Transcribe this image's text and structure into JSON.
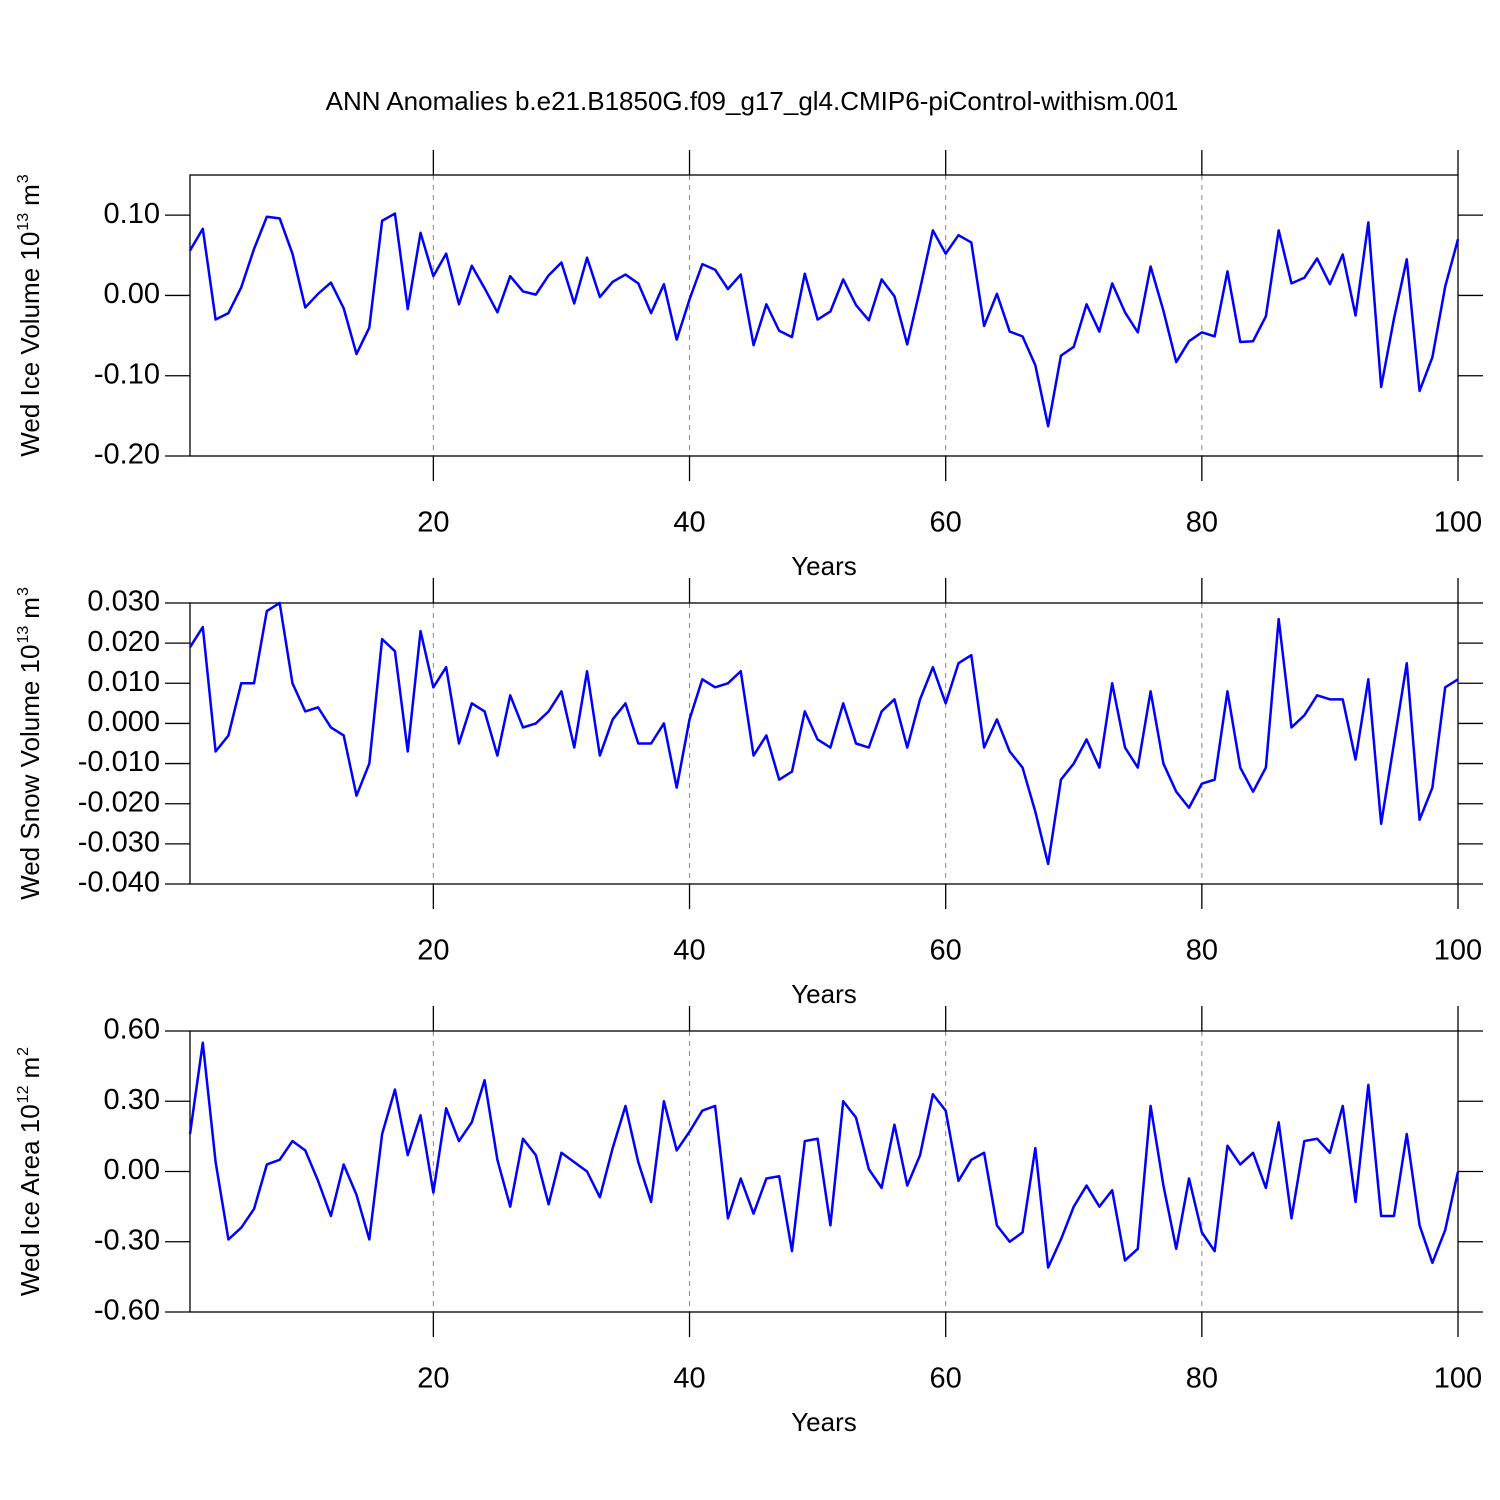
{
  "chart_data": [
    {
      "type": "line",
      "title": "ANN Anomalies b.e21.B1850G.f09_g17_gl4.CMIP6-piControl-withism.001",
      "ylabel": [
        "Wed Ice Volume 10",
        "13",
        "m",
        "3"
      ],
      "xlabel": "Years",
      "color": "#0000ff",
      "xlim": [
        1,
        100
      ],
      "xticks": [
        20,
        40,
        60,
        80,
        100
      ],
      "ylim": [
        -0.2,
        0.15
      ],
      "yticks": [
        {
          "value": 0.1,
          "label": "0.10"
        },
        {
          "value": 0,
          "label": "0.00"
        },
        {
          "value": -0.1,
          "label": "-0.10"
        },
        {
          "value": -0.2,
          "label": "-0.20"
        }
      ],
      "x": [
        1,
        2,
        3,
        4,
        5,
        6,
        7,
        8,
        9,
        10,
        11,
        12,
        13,
        14,
        15,
        16,
        17,
        18,
        19,
        20,
        21,
        22,
        23,
        24,
        25,
        26,
        27,
        28,
        29,
        30,
        31,
        32,
        33,
        34,
        35,
        36,
        37,
        38,
        39,
        40,
        41,
        42,
        43,
        44,
        45,
        46,
        47,
        48,
        49,
        50,
        51,
        52,
        53,
        54,
        55,
        56,
        57,
        58,
        59,
        60,
        61,
        62,
        63,
        64,
        65,
        66,
        67,
        68,
        69,
        70,
        71,
        72,
        73,
        74,
        75,
        76,
        77,
        78,
        79,
        80,
        81,
        82,
        83,
        84,
        85,
        86,
        87,
        88,
        89,
        90,
        91,
        92,
        93,
        94,
        95,
        96,
        97,
        98,
        99,
        100
      ],
      "values": [
        0.056,
        0.083,
        -0.03,
        -0.022,
        0.01,
        0.058,
        0.098,
        0.096,
        0.052,
        -0.015,
        0.002,
        0.016,
        -0.016,
        -0.073,
        -0.04,
        0.093,
        0.102,
        -0.017,
        0.078,
        0.024,
        0.052,
        -0.011,
        0.037,
        0.009,
        -0.021,
        0.024,
        0.005,
        0.001,
        0.025,
        0.041,
        -0.01,
        0.047,
        -0.002,
        0.017,
        0.026,
        0.015,
        -0.022,
        0.014,
        -0.055,
        -0.005,
        0.039,
        0.032,
        0.008,
        0.026,
        -0.062,
        -0.011,
        -0.044,
        -0.052,
        0.027,
        -0.03,
        -0.02,
        0.02,
        -0.012,
        -0.031,
        0.02,
        -0.001,
        -0.061,
        0.008,
        0.081,
        0.052,
        0.075,
        0.066,
        -0.038,
        0.002,
        -0.045,
        -0.051,
        -0.087,
        -0.163,
        -0.075,
        -0.064,
        -0.011,
        -0.045,
        0.015,
        -0.021,
        -0.046,
        0.036,
        -0.019,
        -0.083,
        -0.057,
        -0.046,
        -0.051,
        0.03,
        -0.058,
        -0.057,
        -0.026,
        0.081,
        0.015,
        0.022,
        0.046,
        0.014,
        0.051,
        -0.025,
        0.091,
        -0.114,
        -0.029,
        0.045,
        -0.119,
        -0.077,
        0.011,
        0.07
      ]
    },
    {
      "type": "line",
      "ylabel": [
        "Wed Snow Volume 10",
        "13",
        "m",
        "3"
      ],
      "xlabel": "Years",
      "color": "#0000ff",
      "xlim": [
        1,
        100
      ],
      "xticks": [
        20,
        40,
        60,
        80,
        100
      ],
      "ylim": [
        -0.04,
        0.03
      ],
      "yticks": [
        {
          "value": 0.03,
          "label": "0.030"
        },
        {
          "value": 0.02,
          "label": "0.020"
        },
        {
          "value": 0.01,
          "label": "0.010"
        },
        {
          "value": 0,
          "label": "0.000"
        },
        {
          "value": -0.01,
          "label": "-0.010"
        },
        {
          "value": -0.02,
          "label": "-0.020"
        },
        {
          "value": -0.03,
          "label": "-0.030"
        },
        {
          "value": -0.04,
          "label": "-0.040"
        }
      ],
      "x": [
        1,
        2,
        3,
        4,
        5,
        6,
        7,
        8,
        9,
        10,
        11,
        12,
        13,
        14,
        15,
        16,
        17,
        18,
        19,
        20,
        21,
        22,
        23,
        24,
        25,
        26,
        27,
        28,
        29,
        30,
        31,
        32,
        33,
        34,
        35,
        36,
        37,
        38,
        39,
        40,
        41,
        42,
        43,
        44,
        45,
        46,
        47,
        48,
        49,
        50,
        51,
        52,
        53,
        54,
        55,
        56,
        57,
        58,
        59,
        60,
        61,
        62,
        63,
        64,
        65,
        66,
        67,
        68,
        69,
        70,
        71,
        72,
        73,
        74,
        75,
        76,
        77,
        78,
        79,
        80,
        81,
        82,
        83,
        84,
        85,
        86,
        87,
        88,
        89,
        90,
        91,
        92,
        93,
        94,
        95,
        96,
        97,
        98,
        99,
        100
      ],
      "values": [
        0.019,
        0.024,
        -0.007,
        -0.003,
        0.01,
        0.01,
        0.028,
        0.03,
        0.01,
        0.003,
        0.004,
        -0.001,
        -0.003,
        -0.018,
        -0.01,
        0.021,
        0.018,
        -0.007,
        0.023,
        0.009,
        0.014,
        -0.005,
        0.005,
        0.003,
        -0.008,
        0.007,
        -0.001,
        0.0,
        0.003,
        0.008,
        -0.006,
        0.013,
        -0.008,
        0.001,
        0.005,
        -0.005,
        -0.005,
        0.0,
        -0.016,
        0.001,
        0.011,
        0.009,
        0.01,
        0.013,
        -0.008,
        -0.003,
        -0.014,
        -0.012,
        0.003,
        -0.004,
        -0.006,
        0.005,
        -0.005,
        -0.006,
        0.003,
        0.006,
        -0.006,
        0.006,
        0.014,
        0.005,
        0.015,
        0.017,
        -0.006,
        0.001,
        -0.007,
        -0.011,
        -0.022,
        -0.035,
        -0.014,
        -0.01,
        -0.004,
        -0.011,
        0.01,
        -0.006,
        -0.011,
        0.008,
        -0.01,
        -0.017,
        -0.021,
        -0.015,
        -0.014,
        0.008,
        -0.011,
        -0.017,
        -0.011,
        0.026,
        -0.001,
        0.002,
        0.007,
        0.006,
        0.006,
        -0.009,
        0.011,
        -0.025,
        -0.005,
        0.015,
        -0.024,
        -0.016,
        0.009,
        0.011
      ]
    },
    {
      "type": "line",
      "ylabel": [
        "Wed Ice Area 10",
        "12",
        "m",
        "2"
      ],
      "xlabel": "Years",
      "color": "#0000ff",
      "xlim": [
        1,
        100
      ],
      "xticks": [
        20,
        40,
        60,
        80,
        100
      ],
      "ylim": [
        -0.6,
        0.6
      ],
      "yticks": [
        {
          "value": 0.6,
          "label": "0.60"
        },
        {
          "value": 0.3,
          "label": "0.30"
        },
        {
          "value": 0,
          "label": "0.00"
        },
        {
          "value": -0.3,
          "label": "-0.30"
        },
        {
          "value": -0.6,
          "label": "-0.60"
        }
      ],
      "x": [
        1,
        2,
        3,
        4,
        5,
        6,
        7,
        8,
        9,
        10,
        11,
        12,
        13,
        14,
        15,
        16,
        17,
        18,
        19,
        20,
        21,
        22,
        23,
        24,
        25,
        26,
        27,
        28,
        29,
        30,
        31,
        32,
        33,
        34,
        35,
        36,
        37,
        38,
        39,
        40,
        41,
        42,
        43,
        44,
        45,
        46,
        47,
        48,
        49,
        50,
        51,
        52,
        53,
        54,
        55,
        56,
        57,
        58,
        59,
        60,
        61,
        62,
        63,
        64,
        65,
        66,
        67,
        68,
        69,
        70,
        71,
        72,
        73,
        74,
        75,
        76,
        77,
        78,
        79,
        80,
        81,
        82,
        83,
        84,
        85,
        86,
        87,
        88,
        89,
        90,
        91,
        92,
        93,
        94,
        95,
        96,
        97,
        98,
        99,
        100
      ],
      "values": [
        0.16,
        0.55,
        0.04,
        -0.29,
        -0.24,
        -0.16,
        0.03,
        0.05,
        0.13,
        0.09,
        -0.04,
        -0.19,
        0.03,
        -0.1,
        -0.29,
        0.16,
        0.35,
        0.07,
        0.24,
        -0.09,
        0.27,
        0.13,
        0.21,
        0.39,
        0.05,
        -0.15,
        0.14,
        0.07,
        -0.14,
        0.08,
        0.04,
        0.0,
        -0.11,
        0.1,
        0.28,
        0.04,
        -0.13,
        0.3,
        0.09,
        0.17,
        0.26,
        0.28,
        -0.2,
        -0.03,
        -0.18,
        -0.03,
        -0.02,
        -0.34,
        0.13,
        0.14,
        -0.23,
        0.3,
        0.23,
        0.01,
        -0.07,
        0.2,
        -0.06,
        0.07,
        0.33,
        0.26,
        -0.04,
        0.05,
        0.08,
        -0.23,
        -0.3,
        -0.26,
        0.1,
        -0.41,
        -0.29,
        -0.15,
        -0.06,
        -0.15,
        -0.08,
        -0.38,
        -0.33,
        0.28,
        -0.06,
        -0.33,
        -0.03,
        -0.26,
        -0.34,
        0.11,
        0.03,
        0.08,
        -0.07,
        0.21,
        -0.2,
        0.13,
        0.14,
        0.08,
        0.28,
        -0.13,
        0.37,
        -0.19,
        -0.19,
        0.16,
        -0.23,
        -0.39,
        -0.25,
        0.0
      ]
    }
  ]
}
